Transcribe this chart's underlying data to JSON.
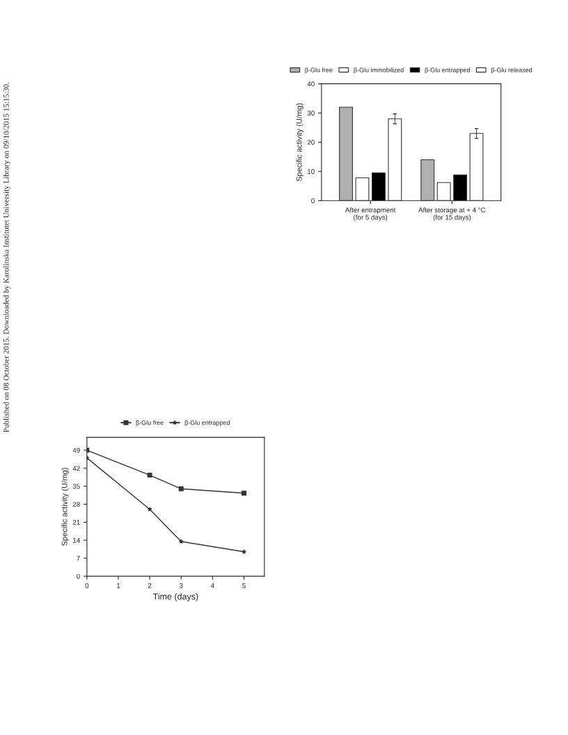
{
  "chart_data": [
    {
      "type": "bar",
      "categories": [
        "After entrapment\n(for 5 days)",
        "After storage at + 4 °C\n(for 15 days)"
      ],
      "ylabel": "Specific activity (U/mg)",
      "ylim": [
        0,
        40
      ],
      "yticks": [
        0,
        10,
        20,
        30,
        40
      ],
      "grid": false,
      "legend": "top",
      "series": [
        {
          "name": "β-Glu free",
          "color": "#b0b0b0",
          "values": [
            32,
            14
          ]
        },
        {
          "name": "β-Glu immobilized",
          "color": "#ffffff",
          "values": [
            7.8,
            6.2
          ]
        },
        {
          "name": "β-Glu entrapped",
          "color": "#000000",
          "values": [
            9.5,
            8.8
          ]
        },
        {
          "name": "β-Glu released",
          "color": "#ffffff",
          "values": [
            28,
            23
          ],
          "errors": [
            1.7,
            1.7
          ]
        }
      ],
      "annotations": [
        "Published on 08 October 2015. Downloaded by Karolinska Institutet University Library on 09/10/2015 15:15:30."
      ]
    },
    {
      "type": "line",
      "xlabel": "Time (days)",
      "ylabel": "Specific activity (U/mg)",
      "xlim": [
        0,
        5.65
      ],
      "xticks": [
        0,
        1,
        2,
        3,
        4,
        5
      ],
      "ylim": [
        0,
        54
      ],
      "yticks": [
        0,
        7,
        14,
        21,
        28,
        35,
        42,
        49
      ],
      "grid": false,
      "legend": "top",
      "series": [
        {
          "name": "β-Glu free",
          "color": "#333333",
          "marker": "square",
          "x": [
            0,
            2,
            3,
            5
          ],
          "values": [
            49,
            39.3,
            34,
            32.3
          ]
        },
        {
          "name": "β-Glu entrapped",
          "color": "#333333",
          "marker": "star",
          "x": [
            0,
            2,
            3,
            5
          ],
          "values": [
            46,
            26,
            13.5,
            9.5
          ]
        }
      ]
    }
  ]
}
